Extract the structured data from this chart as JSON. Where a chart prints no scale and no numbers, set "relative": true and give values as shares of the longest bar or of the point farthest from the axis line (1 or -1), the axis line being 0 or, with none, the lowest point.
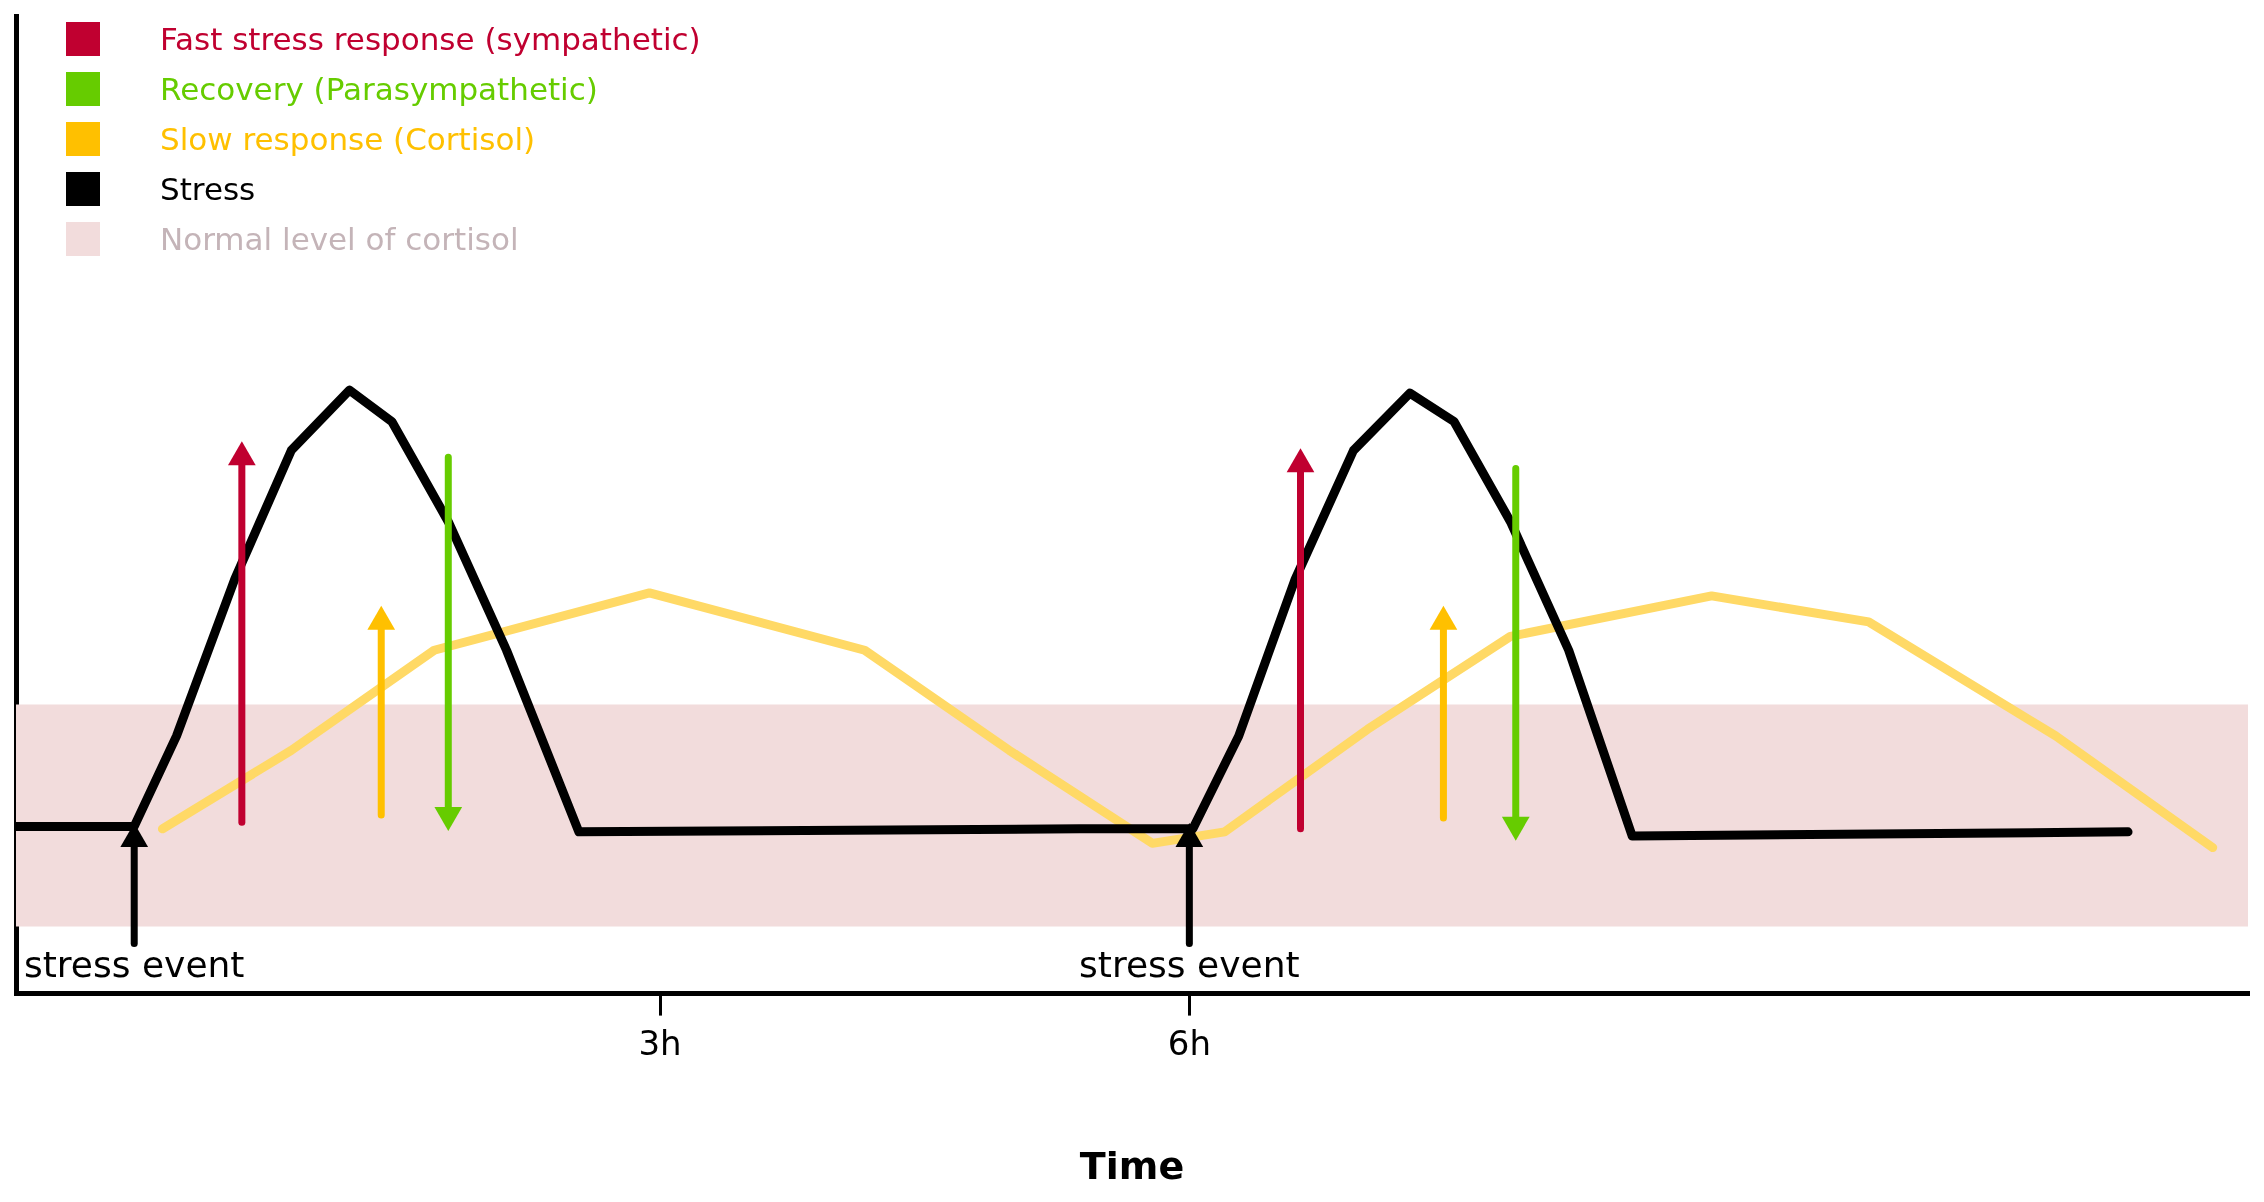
{
  "chart_data": {
    "type": "line",
    "xlabel": "Time",
    "relative": true,
    "legend": "top left",
    "xlim": [
      -0.65,
      12
    ],
    "xticks": [
      {
        "value": 3,
        "label": "3h"
      },
      {
        "value": 6,
        "label": "6h"
      }
    ],
    "series": [
      {
        "name": "Fast stress response (sympathetic)",
        "color": "#c00030",
        "marker": "triangle",
        "x": [
          0.63,
          0.63
        ],
        "values": [
          0.284,
          0.889
        ]
      },
      {
        "name": "Recovery (Parasympathetic)",
        "color": "#66cc00",
        "marker": "triangle",
        "x": [
          1.8,
          1.8
        ],
        "values": [
          0.889,
          0.296
        ]
      },
      {
        "name": "Slow response (Cortisol)",
        "color": "#ffc000",
        "marker": "triangle",
        "x": [
          1.42,
          1.42
        ],
        "values": [
          0.296,
          0.616
        ]
      },
      {
        "name": "Stress",
        "color": "#000000",
        "x": [
          -0.65,
          0.02,
          0.26,
          0.59,
          0.91,
          1.24,
          1.48,
          1.8,
          2.13,
          2.54,
          5.38,
          6.02,
          6.28,
          6.6,
          6.93,
          7.25,
          7.5,
          7.82,
          8.15,
          8.51,
          11.32
        ],
        "values": [
          0.277,
          0.277,
          0.427,
          0.687,
          0.9,
          1,
          0.948,
          0.782,
          0.569,
          0.268,
          0.273,
          0.273,
          0.427,
          0.687,
          0.9,
          0.995,
          0.948,
          0.782,
          0.569,
          0.261,
          0.268
        ]
      },
      {
        "color": "#ffd966",
        "x": [
          0.18,
          0.91,
          1.72,
          2.94,
          4.16,
          4.98,
          5.79,
          6.2,
          7.01,
          7.82,
          8.96,
          9.85,
          10.91,
          11.8
        ],
        "values": [
          0.273,
          0.403,
          0.569,
          0.664,
          0.569,
          0.403,
          0.249,
          0.268,
          0.438,
          0.592,
          0.659,
          0.616,
          0.427,
          0.242
        ]
      },
      {
        "color": "#c00030",
        "marker": "triangle",
        "x": [
          6.63,
          6.63
        ],
        "values": [
          0.273,
          0.877
        ]
      },
      {
        "color": "#66cc00",
        "marker": "triangle",
        "x": [
          7.85,
          7.85
        ],
        "values": [
          0.87,
          0.28
        ]
      },
      {
        "color": "#ffc000",
        "marker": "triangle",
        "x": [
          7.44,
          7.44
        ],
        "values": [
          0.291,
          0.616
        ]
      },
      {
        "color": "#000000",
        "marker": "triangle",
        "x": [
          0.02,
          0.02
        ],
        "values": [
          0.083,
          0.256
        ]
      },
      {
        "color": "#000000",
        "marker": "triangle",
        "x": [
          6.0,
          6.0
        ],
        "values": [
          0.083,
          0.256
        ]
      }
    ],
    "bands": [
      {
        "axis": "y",
        "from": 0.111,
        "to": 0.479,
        "label": "Normal level of cortisol",
        "color": "#f2dcdc"
      }
    ],
    "annotations": [
      {
        "text": "stress event",
        "x": 0.02,
        "y": 0.083
      },
      {
        "text": "stress event",
        "x": 6.0,
        "y": 0.083
      }
    ]
  }
}
